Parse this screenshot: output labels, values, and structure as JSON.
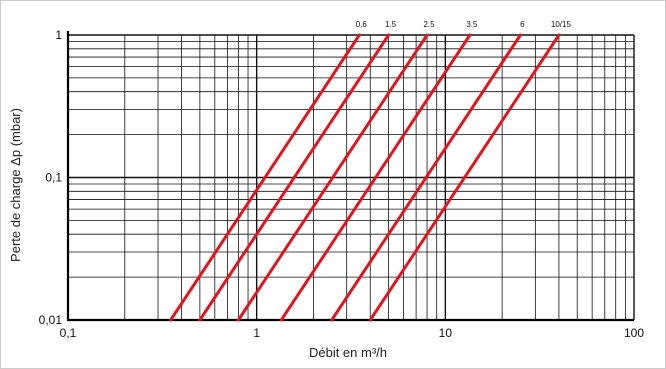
{
  "chart_data": {
    "type": "line",
    "xscale": "log",
    "yscale": "log",
    "xlim": [
      0.1,
      100
    ],
    "ylim": [
      0.01,
      1
    ],
    "grid": true,
    "xlabel": "Débit en m³/h",
    "ylabel": "Perte de charge  Δp (mbar)",
    "x_ticks": [
      0.1,
      1,
      10,
      100
    ],
    "x_tick_labels": [
      "0,1",
      "1",
      "10",
      "100"
    ],
    "y_ticks": [
      0.01,
      0.1,
      1
    ],
    "y_tick_labels": [
      "0,01",
      "0,1",
      "1"
    ],
    "series_color": "#e0161c",
    "series": [
      {
        "name": "0.6",
        "x": [
          0.35,
          3.5
        ],
        "y": [
          0.01,
          1
        ]
      },
      {
        "name": "1.5",
        "x": [
          0.5,
          5.0
        ],
        "y": [
          0.01,
          1
        ]
      },
      {
        "name": "2.5",
        "x": [
          0.8,
          8.0
        ],
        "y": [
          0.01,
          1
        ]
      },
      {
        "name": "3.5",
        "x": [
          1.35,
          13.5
        ],
        "y": [
          0.01,
          1
        ]
      },
      {
        "name": "6",
        "x": [
          2.5,
          25.0
        ],
        "y": [
          0.01,
          1
        ]
      },
      {
        "name": "10/15",
        "x": [
          4.0,
          40.0
        ],
        "y": [
          0.01,
          1
        ]
      }
    ]
  }
}
